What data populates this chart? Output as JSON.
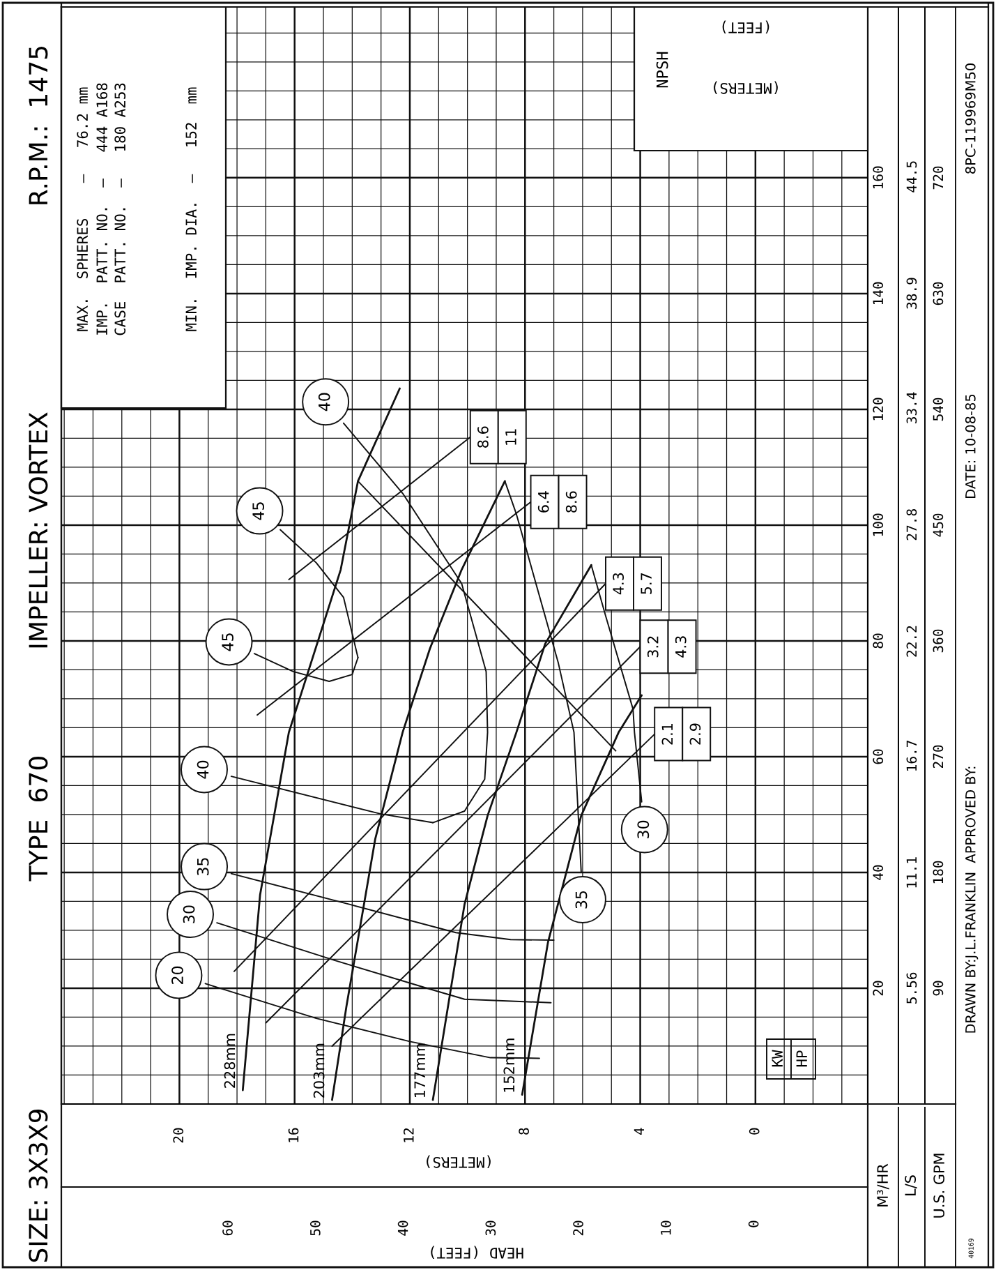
{
  "chart_data": {
    "type": "line",
    "orientation": "horizontal",
    "title": "SIZE: 3X3X9",
    "subtitle": "TYPE  670",
    "xlabel": "(METERS)",
    "x2label": "HEAD (FEET)",
    "ylabel": "M³/HR",
    "y2label": "L/S",
    "y3label": "U.S. GPM",
    "xlim": [
      24.1,
      -3.9
    ],
    "xticks": [
      20,
      16,
      12,
      8,
      4,
      0
    ],
    "x2lim": [
      79.1,
      -12.9
    ],
    "x2ticks": [
      60,
      50,
      40,
      30,
      20,
      10,
      0
    ],
    "ylim": [
      0,
      189.5
    ],
    "yticks": [
      20,
      40,
      60,
      80,
      100,
      120,
      140,
      160
    ],
    "y2lim": [
      0,
      52.64
    ],
    "y2ticks": [
      5.56,
      11.1,
      16.7,
      22.2,
      27.8,
      33.4,
      38.9,
      44.5
    ],
    "y3lim": [
      0,
      852.8
    ],
    "y3ticks": [
      90,
      180,
      270,
      360,
      450,
      540,
      630,
      720
    ],
    "grid": true,
    "series": [
      {
        "name": "228mm",
        "color": "#111111",
        "x": [
          2.4,
          36.1,
          64.2,
          92.3,
          107.6,
          123.6
        ],
        "values": [
          17.8,
          17.2,
          16.2,
          14.4,
          13.8,
          12.35
        ]
      },
      {
        "name": "203mm",
        "color": "#111111",
        "x": [
          0.7,
          16.9,
          45.8,
          64.2,
          78.7,
          92.3,
          107.6
        ],
        "values": [
          14.7,
          14.2,
          13.2,
          12.25,
          11.3,
          10.2,
          8.7
        ]
      },
      {
        "name": "177mm",
        "color": "#111111",
        "x": [
          0.7,
          34.5,
          49.8,
          64.2,
          79.5,
          93.1
        ],
        "values": [
          11.2,
          10.1,
          9.3,
          8.3,
          7.3,
          5.7
        ]
      },
      {
        "name": "152mm",
        "color": "#111111",
        "x": [
          1.6,
          28,
          49.8,
          64.2,
          70.6
        ],
        "values": [
          8.1,
          7.2,
          6.05,
          4.75,
          3.95
        ]
      },
      {
        "color": "#111111",
        "x": [
          90.6,
          115.2
        ],
        "values": [
          16.2,
          9.9
        ]
      },
      {
        "color": "#111111",
        "x": [
          67.2,
          104
        ],
        "values": [
          17.3,
          7.8
        ]
      },
      {
        "color": "#111111",
        "x": [
          22.9,
          89.9
        ],
        "values": [
          18.1,
          5.2
        ]
      },
      {
        "color": "#111111",
        "x": [
          14,
          79
        ],
        "values": [
          17.0,
          4.0
        ]
      },
      {
        "color": "#111111",
        "x": [
          10,
          63.9
        ],
        "values": [
          14.7,
          3.5
        ]
      },
      {
        "color": "#111111",
        "x": [
          107.6,
          61
        ],
        "values": [
          13.8,
          4.85
        ]
      },
      {
        "color": "#111111",
        "x": [
          20.8,
          14.8,
          10.8,
          8.0,
          7.9
        ],
        "values": [
          19.1,
          15.25,
          12.0,
          9.2,
          7.5
        ]
      },
      {
        "color": "#111111",
        "x": [
          31.3,
          24.8,
          20,
          18.1,
          17.5
        ],
        "values": [
          18.7,
          14.6,
          11.4,
          10.1,
          7.1
        ]
      },
      {
        "color": "#111111",
        "x": [
          39.8,
          34.5,
          29.6,
          28.4,
          28.3
        ],
        "values": [
          18.2,
          14.1,
          10.4,
          8.5,
          7.0
        ]
      },
      {
        "color": "#111111",
        "x": [
          56.6,
          50.1,
          48.6
        ],
        "values": [
          18.2,
          13.0,
          11.2
        ]
      },
      {
        "color": "#111111",
        "x": [
          117.6,
          105.5,
          89.9,
          74.7,
          64.2,
          56.1,
          50.6,
          48.6
        ],
        "values": [
          14.3,
          12.25,
          10.2,
          9.35,
          9.3,
          9.4,
          10.1,
          11.2
        ]
      },
      {
        "color": "#111111",
        "x": [
          99.2,
          93.5,
          87.5,
          77.1
        ],
        "values": [
          16.5,
          15.25,
          14.3,
          13.8
        ]
      },
      {
        "color": "#111111",
        "x": [
          77.8,
          74.7,
          73,
          74.2,
          77.1
        ],
        "values": [
          17.4,
          16.05,
          14.8,
          14.0,
          13.8
        ]
      },
      {
        "color": "#111111",
        "x": [
          40.1,
          64.2,
          76.3,
          101.9,
          107.6
        ],
        "values": [
          6.05,
          6.3,
          6.85,
          8.3,
          8.7
        ]
      },
      {
        "color": "#111111",
        "x": [
          52.2,
          64.2,
          68.2,
          84.3,
          93.1
        ],
        "values": [
          3.95,
          4.2,
          4.25,
          5.2,
          5.7
        ]
      }
    ],
    "annotations": [
      "IMPELLER: VORTEX",
      "R.P.M.:  1475",
      "MAX.  SPHERES    –   76.2 mm",
      "IMP.  PATT. NO.  –   444 A168",
      "CASE  PATT. NO.  –   180 A253",
      "MIN.  IMP. DIA.  –   152  mm",
      "NPSH",
      "(METERS)",
      "(FEET)",
      "KW",
      "HP",
      "DRAWN BY:J.L.FRANKLIN  APPROVED BY:",
      "DATE: 10-08-85",
      "8PC-119969M50",
      "40169",
      {
        "text": "20",
        "x": 19.1,
        "y": 20.8
      },
      {
        "text": "30",
        "x": 18.7,
        "y": 31.3
      },
      {
        "text": "35",
        "x": 18.2,
        "y": 39.8
      },
      {
        "text": "40",
        "x": 18.2,
        "y": 56.6
      },
      {
        "text": "45",
        "x": 17.4,
        "y": 77.8
      },
      {
        "text": "45",
        "x": 16.5,
        "y": 99.2
      },
      {
        "text": "40",
        "x": 14.3,
        "y": 117.6
      },
      {
        "text": "35",
        "x": 6.05,
        "y": 40.1
      },
      {
        "text": "30",
        "x": 3.95,
        "y": 52.2
      },
      {
        "text": "8.6",
        "x": 9.9,
        "y": 115.2
      },
      {
        "text": "11",
        "x": 9.9,
        "y": 115.2
      },
      {
        "text": "6.4",
        "x": 7.8,
        "y": 104
      },
      {
        "text": "8.6",
        "x": 7.8,
        "y": 104
      },
      {
        "text": "4.3",
        "x": 5.2,
        "y": 89.9
      },
      {
        "text": "5.7",
        "x": 5.2,
        "y": 89.9
      },
      {
        "text": "3.2",
        "x": 4.0,
        "y": 79
      },
      {
        "text": "4.3",
        "x": 4.0,
        "y": 79
      },
      {
        "text": "2.1",
        "x": 3.5,
        "y": 63.9
      },
      {
        "text": "2.9",
        "x": 3.5,
        "y": 63.9
      }
    ]
  }
}
